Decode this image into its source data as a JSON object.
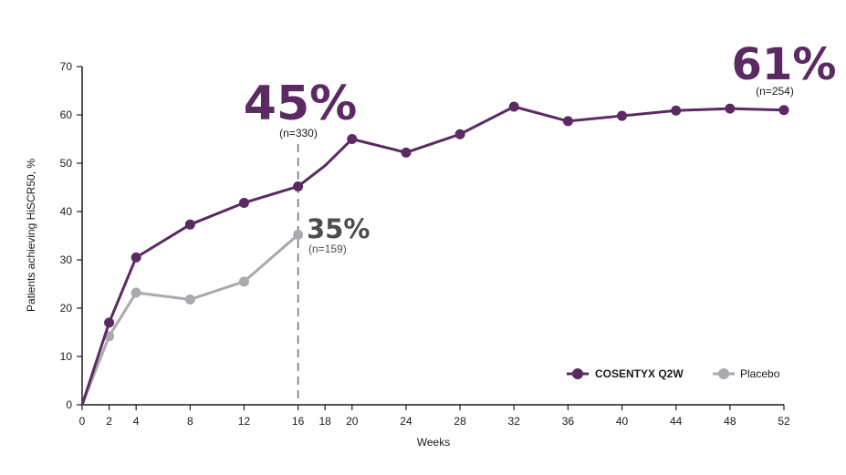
{
  "colors": {
    "cosentyx": "#5b2a63",
    "placebo": "#a9aaad",
    "axis": "#1a1a1a",
    "dash": "#6d6d6d",
    "annotation_gray": "#4d4d4f"
  },
  "chart_data": {
    "type": "line",
    "title": "",
    "xlabel": "Weeks",
    "ylabel": "Patients achieving HiSCR50, %",
    "xlim": [
      0,
      52
    ],
    "ylim": [
      0,
      70
    ],
    "x_ticks": [
      0,
      2,
      4,
      8,
      12,
      16,
      18,
      20,
      24,
      28,
      32,
      36,
      40,
      44,
      48,
      52
    ],
    "y_ticks": [
      0,
      10,
      20,
      30,
      40,
      50,
      60,
      70
    ],
    "legend_position": "bottom-right",
    "series": [
      {
        "name": "COSENTYX Q2W",
        "color_key": "cosentyx",
        "points": [
          {
            "x": 0,
            "y": 0,
            "marker": false
          },
          {
            "x": 2,
            "y": 17,
            "marker": true
          },
          {
            "x": 4,
            "y": 30.5,
            "marker": true
          },
          {
            "x": 8,
            "y": 37.3,
            "marker": true
          },
          {
            "x": 12,
            "y": 41.8,
            "marker": true
          },
          {
            "x": 16,
            "y": 45.2,
            "marker": true
          },
          {
            "x": 18,
            "y": 49.5,
            "marker": false
          },
          {
            "x": 20,
            "y": 55,
            "marker": true
          },
          {
            "x": 24,
            "y": 52.2,
            "marker": true
          },
          {
            "x": 28,
            "y": 56,
            "marker": true
          },
          {
            "x": 32,
            "y": 61.7,
            "marker": true
          },
          {
            "x": 36,
            "y": 58.7,
            "marker": true
          },
          {
            "x": 40,
            "y": 59.8,
            "marker": true
          },
          {
            "x": 44,
            "y": 60.9,
            "marker": true
          },
          {
            "x": 48,
            "y": 61.3,
            "marker": true
          },
          {
            "x": 52,
            "y": 61,
            "marker": true
          }
        ]
      },
      {
        "name": "Placebo",
        "color_key": "placebo",
        "points": [
          {
            "x": 0,
            "y": 0,
            "marker": false
          },
          {
            "x": 2,
            "y": 14.2,
            "marker": true
          },
          {
            "x": 4,
            "y": 23.2,
            "marker": true
          },
          {
            "x": 8,
            "y": 21.8,
            "marker": true
          },
          {
            "x": 12,
            "y": 25.5,
            "marker": true
          },
          {
            "x": 16,
            "y": 35.2,
            "marker": true
          }
        ]
      }
    ],
    "reference_line": {
      "x": 16,
      "style": "dashed"
    },
    "annotations": [
      {
        "id": "week16-cosentyx",
        "pct": "45%",
        "n": "(n=330)"
      },
      {
        "id": "week16-placebo",
        "pct": "35%",
        "n": "(n=159)"
      },
      {
        "id": "week52-cosentyx",
        "pct": "61%",
        "n": "(n=254)"
      }
    ]
  }
}
